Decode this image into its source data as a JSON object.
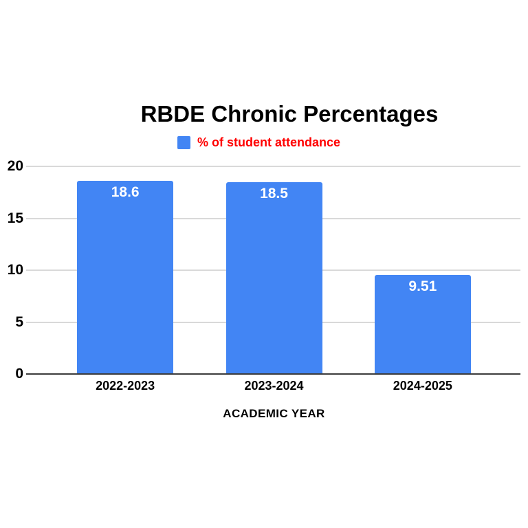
{
  "chart_data": {
    "type": "bar",
    "title": "RBDE Chronic Percentages",
    "legend": {
      "label": "% of student attendance",
      "swatch_color": "#4285f4",
      "text_color": "#ff0000",
      "position": "top"
    },
    "categories": [
      "2022-2023",
      "2023-2024",
      "2024-2025"
    ],
    "values": [
      18.6,
      18.5,
      9.51
    ],
    "value_labels": [
      "18.6",
      "18.5",
      "9.51"
    ],
    "xlabel": "ACADEMIC YEAR",
    "ylabel": "",
    "ylim": [
      0,
      20
    ],
    "yticks": [
      0,
      5,
      10,
      15,
      20
    ],
    "grid": true,
    "bar_color": "#4285f4",
    "bar_label_color": "#ffffff",
    "grid_color": "#d9d9d9",
    "axis_line_color": "#3c3c3c",
    "background_color": "#ffffff"
  }
}
